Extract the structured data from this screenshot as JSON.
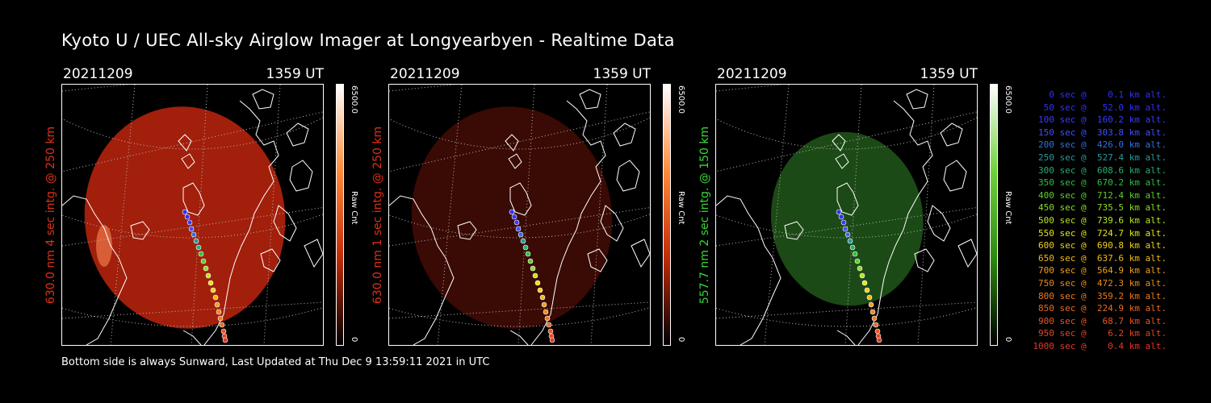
{
  "title": "Kyoto U / UEC All-sky Airglow Imager at Longyearbyen - Realtime Data",
  "footer": "Bottom side is always Sunward, Last Updated at Thu Dec  9 13:59:11 2021 in UTC",
  "panels": [
    {
      "date": "20211209",
      "time": "1359 UT",
      "ylabel": "630.0 nm 4 sec intg. @ 250 km",
      "label_color": "#e03018",
      "cbar_max": "6500.0",
      "cbar_unit": "Raw Cnt",
      "cbar_min": "0",
      "cbar_colors": [
        "#ffffff",
        "#ff8a3a",
        "#c22a08",
        "#000000"
      ],
      "glow_color": "#a21f0c"
    },
    {
      "date": "20211209",
      "time": "1359 UT",
      "ylabel": "630.0 nm 1 sec intg. @ 250 km",
      "label_color": "#e03018",
      "cbar_max": "6500.0",
      "cbar_unit": "Raw Cnt",
      "cbar_min": "0",
      "cbar_colors": [
        "#ffffff",
        "#ff8a3a",
        "#c22a08",
        "#000000"
      ],
      "glow_color": "#3a0a04"
    },
    {
      "date": "20211209",
      "time": "1359 UT",
      "ylabel": "557.7 nm 2 sec intg. @ 150 km",
      "label_color": "#38d838",
      "cbar_max": "6500.0",
      "cbar_unit": "Raw Cnt",
      "cbar_min": "0",
      "cbar_colors": [
        "#ffffff",
        "#6fd23a",
        "#2c8a10",
        "#000000"
      ],
      "glow_color": "#1c4a16"
    }
  ],
  "legend": [
    {
      "text": "   0 sec @    0.1 km alt.",
      "color": "#3030ff"
    },
    {
      "text": "  50 sec @   52.0 km alt.",
      "color": "#3030ff"
    },
    {
      "text": " 100 sec @  160.2 km alt.",
      "color": "#3a3aff"
    },
    {
      "text": " 150 sec @  303.8 km alt.",
      "color": "#3f50ff"
    },
    {
      "text": " 200 sec @  426.0 km alt.",
      "color": "#3070e0"
    },
    {
      "text": " 250 sec @  527.4 km alt.",
      "color": "#2a9a9a"
    },
    {
      "text": " 300 sec @  608.6 km alt.",
      "color": "#24b070"
    },
    {
      "text": " 350 sec @  670.2 km alt.",
      "color": "#30c040"
    },
    {
      "text": " 400 sec @  712.4 km alt.",
      "color": "#5ad030"
    },
    {
      "text": " 450 sec @  735.5 km alt.",
      "color": "#8ade28"
    },
    {
      "text": " 500 sec @  739.6 km alt.",
      "color": "#b8e820"
    },
    {
      "text": " 550 sec @  724.7 km alt.",
      "color": "#e6e61a"
    },
    {
      "text": " 600 sec @  690.8 km alt.",
      "color": "#f0d218"
    },
    {
      "text": " 650 sec @  637.6 km alt.",
      "color": "#f2ba18"
    },
    {
      "text": " 700 sec @  564.9 km alt.",
      "color": "#f2a018"
    },
    {
      "text": " 750 sec @  472.3 km alt.",
      "color": "#f08a1a"
    },
    {
      "text": " 800 sec @  359.2 km alt.",
      "color": "#ee7a1c"
    },
    {
      "text": " 850 sec @  224.9 km alt.",
      "color": "#ec6a1e"
    },
    {
      "text": " 900 sec @   68.7 km alt.",
      "color": "#ea5520"
    },
    {
      "text": " 950 sec @    6.2 km alt.",
      "color": "#e84422"
    },
    {
      "text": "1000 sec @    0.4 km alt.",
      "color": "#e63824"
    }
  ]
}
